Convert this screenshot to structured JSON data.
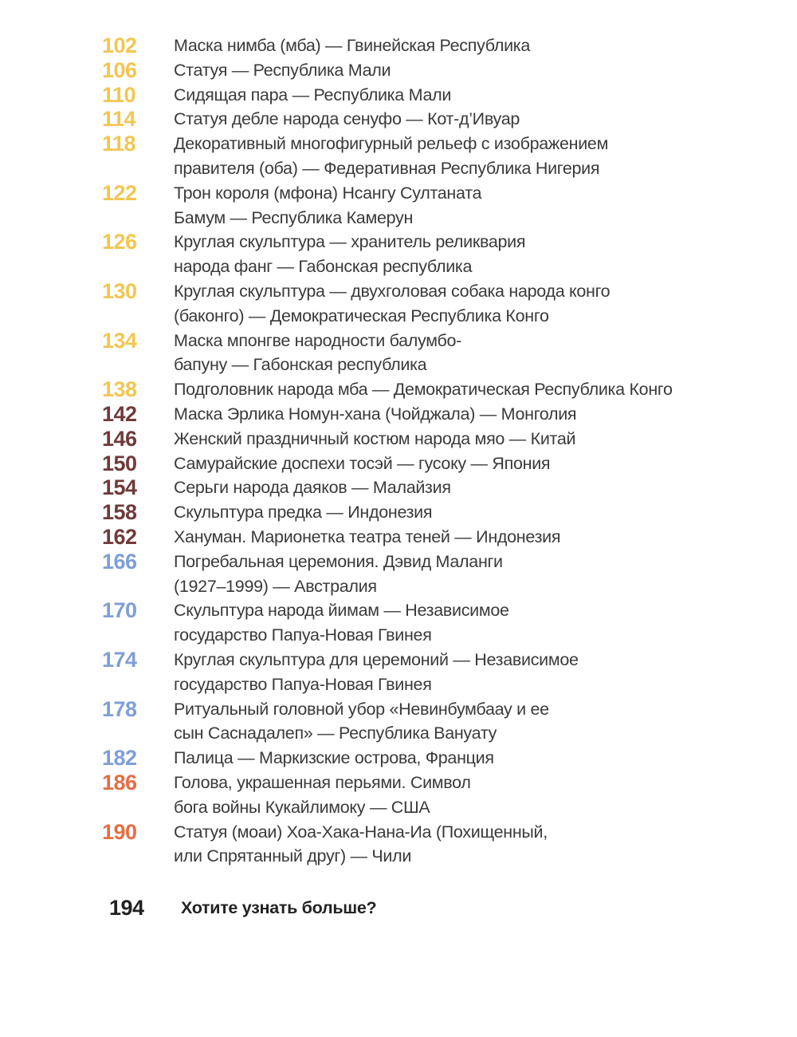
{
  "colors": {
    "africa": "#f2c652",
    "asia": "#6f3b3a",
    "oceania": "#7f9ed6",
    "america": "#e46e45",
    "final": "#222222"
  },
  "entries": [
    {
      "page": "102",
      "group": "africa",
      "lines": [
        "Маска нимба (мба) — Гвинейская Республика"
      ]
    },
    {
      "page": "106",
      "group": "africa",
      "lines": [
        "Статуя — Республика Мали"
      ]
    },
    {
      "page": "110",
      "group": "africa",
      "lines": [
        "Сидящая пара — Республика Мали"
      ]
    },
    {
      "page": "114",
      "group": "africa",
      "lines": [
        "Статуя дебле народа сенуфо — Кот-д’Ивуар"
      ]
    },
    {
      "page": "118",
      "group": "africa",
      "lines": [
        "Декоративный многофигурный рельеф с изображением",
        "правителя (оба) — Федеративная Республика Нигерия"
      ]
    },
    {
      "page": "122",
      "group": "africa",
      "lines": [
        "Трон короля (мфона) Нсангу Султаната",
        "Бамум — Республика Камерун"
      ]
    },
    {
      "page": "126",
      "group": "africa",
      "lines": [
        "Круглая скульптура — хранитель реликвария",
        "народа фанг — Габонская республика"
      ]
    },
    {
      "page": "130",
      "group": "africa",
      "lines": [
        "Круглая скульптура — двухголовая собака народа конго",
        "(баконго) — Демократическая Республика Конго"
      ]
    },
    {
      "page": "134",
      "group": "africa",
      "lines": [
        "Маска мпонгве народности балумбо-",
        "бапуну — Габонская республика"
      ]
    },
    {
      "page": "138",
      "group": "africa",
      "lines": [
        "Подголовник народа мба — Демократическая Республика Конго"
      ]
    },
    {
      "page": "142",
      "group": "asia",
      "lines": [
        "Маска Эрлика Номун-хана (Чойджала) — Монголия"
      ]
    },
    {
      "page": "146",
      "group": "asia",
      "lines": [
        "Женский праздничный костюм народа мяо — Китай"
      ]
    },
    {
      "page": "150",
      "group": "asia",
      "lines": [
        "Самурайские доспехи тосэй — гусоку — Япония"
      ]
    },
    {
      "page": "154",
      "group": "asia",
      "lines": [
        "Серьги народа даяков — Малайзия"
      ]
    },
    {
      "page": "158",
      "group": "asia",
      "lines": [
        "Скульптура предка — Индонезия"
      ]
    },
    {
      "page": "162",
      "group": "asia",
      "lines": [
        "Хануман. Марионетка театра теней — Индонезия"
      ]
    },
    {
      "page": "166",
      "group": "oceania",
      "lines": [
        "Погребальная церемония. Дэвид Маланги",
        "(1927–1999) — Австралия"
      ]
    },
    {
      "page": "170",
      "group": "oceania",
      "lines": [
        "Скульптура народа йимам — Независимое",
        "государство Папуа-Новая Гвинея"
      ]
    },
    {
      "page": "174",
      "group": "oceania",
      "lines": [
        "Круглая скульптура для церемоний — Независимое",
        "государство Папуа-Новая Гвинея"
      ]
    },
    {
      "page": "178",
      "group": "oceania",
      "lines": [
        "Ритуальный головной убор «Невинбумбаау и ее",
        "сын Саснадалеп» — Республика Вануату"
      ]
    },
    {
      "page": "182",
      "group": "oceania",
      "lines": [
        "Палица — Маркизские острова, Франция"
      ]
    },
    {
      "page": "186",
      "group": "america",
      "lines": [
        "Голова, украшенная перьями. Символ",
        "бога войны Кукайлимоку — США"
      ]
    },
    {
      "page": "190",
      "group": "america",
      "lines": [
        "Статуя (моаи) Хоа-Хака-Нана-Иа (Похищенный,",
        "или Спрятанный друг) — Чили"
      ]
    }
  ],
  "final": {
    "page": "194",
    "title": "Хотите узнать больше?"
  }
}
